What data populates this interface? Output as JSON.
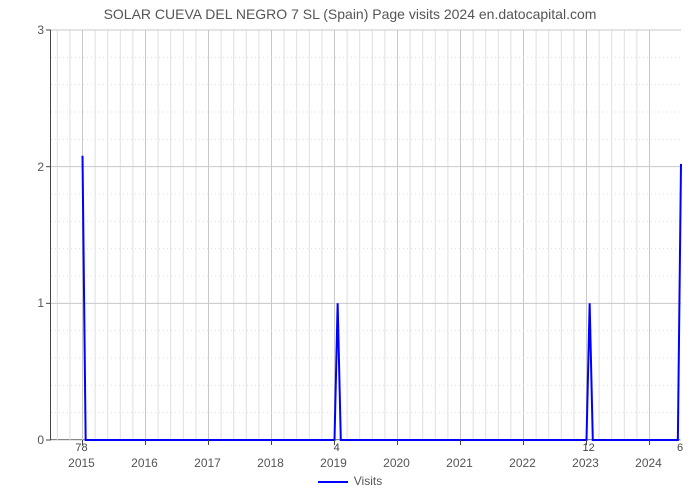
{
  "chart": {
    "type": "line",
    "title": "SOLAR CUEVA DEL NEGRO 7 SL (Spain) Page visits 2024 en.datocapital.com",
    "title_fontsize": 14,
    "title_color": "#555555",
    "x_labels": [
      "2015",
      "2016",
      "2017",
      "2018",
      "2019",
      "2020",
      "2021",
      "2022",
      "2023",
      "2024"
    ],
    "y_ticks": [
      0,
      1,
      2,
      3
    ],
    "ylim": [
      0,
      3
    ],
    "series": {
      "name": "Visits",
      "color": "#0000ff",
      "line_width": 2,
      "points": [
        [
          0.0,
          2.08
        ],
        [
          0.05,
          0.0
        ],
        [
          4.0,
          0.0
        ],
        [
          4.05,
          1.0
        ],
        [
          4.1,
          0.0
        ],
        [
          8.0,
          0.0
        ],
        [
          8.05,
          1.0
        ],
        [
          8.1,
          0.0
        ],
        [
          9.45,
          0.0
        ],
        [
          9.5,
          2.02
        ]
      ]
    },
    "bar_annotations": [
      {
        "x": 0.0,
        "label": "78"
      },
      {
        "x": 4.05,
        "label": "4"
      },
      {
        "x": 8.05,
        "label": "12"
      },
      {
        "x": 9.5,
        "label": "6"
      }
    ],
    "x_range": [
      -0.5,
      9.5
    ],
    "grid_minor_color": "#e0e0e0",
    "grid_major_color": "#c8c8c8",
    "background_color": "#ffffff",
    "label_fontsize": 12,
    "label_color": "#555555",
    "legend_label": "Visits",
    "minor_divisions_per_major_x": 5,
    "minor_dotted_y": true
  }
}
